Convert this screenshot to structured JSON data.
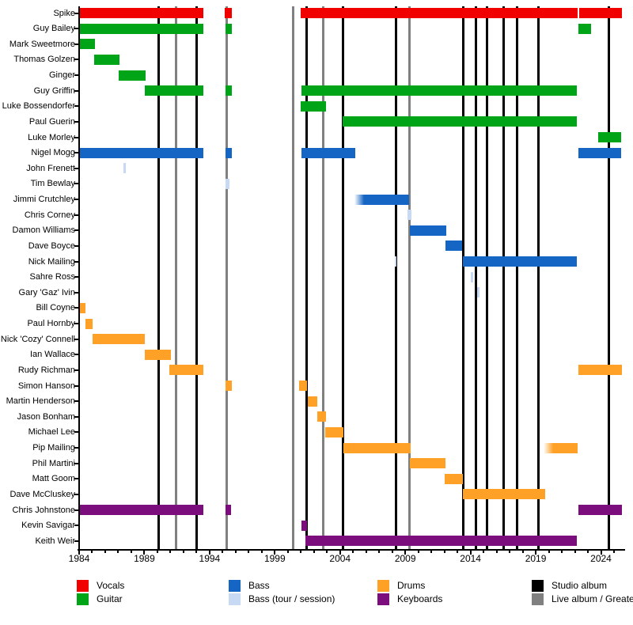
{
  "chart_data": {
    "type": "timeline",
    "description": "Band members timeline (gantt-style), roles by color, album release markers as vertical lines",
    "x_axis": {
      "start_year": 1984,
      "end_year": 2026,
      "major_tick_labels": [
        "1984",
        "1989",
        "1994",
        "1999",
        "2004",
        "2009",
        "2014",
        "2019",
        "2024"
      ],
      "major_tick_years": [
        1984,
        1989,
        1994,
        1999,
        2004,
        2009,
        2014,
        2019,
        2024
      ],
      "minor_tick_interval": 1,
      "grid": false
    },
    "colors": {
      "vocals": "#f10000",
      "guitar": "#00a417",
      "bass": "#1565c4",
      "bass_session": "#c8d9f3",
      "drums": "#ffa127",
      "keyboards": "#7c0d7c",
      "studio_album": "#000000",
      "live_album": "#808080"
    },
    "members": [
      {
        "name": "Spike",
        "segments": [
          {
            "s": 1984,
            "e": 1993.5,
            "r": "vocals"
          },
          {
            "s": 1995.15,
            "e": 1995.7,
            "r": "vocals"
          },
          {
            "s": 2001,
            "e": 2022.2,
            "r": "vocals"
          },
          {
            "s": 2022.35,
            "e": 2025.6,
            "r": "vocals"
          }
        ]
      },
      {
        "name": "Guy Bailey",
        "segments": [
          {
            "s": 1984,
            "e": 1993.5,
            "r": "guitar"
          },
          {
            "s": 1995.2,
            "e": 1995.7,
            "r": "guitar"
          },
          {
            "s": 2022.3,
            "e": 2023.25,
            "r": "guitar"
          }
        ]
      },
      {
        "name": "Mark Sweetmore",
        "segments": [
          {
            "s": 1984.05,
            "e": 1985.2,
            "r": "guitar"
          }
        ]
      },
      {
        "name": "Thomas Golzen",
        "segments": [
          {
            "s": 1985.15,
            "e": 1987.1,
            "r": "guitar"
          }
        ]
      },
      {
        "name": "Ginger",
        "segments": [
          {
            "s": 1987.05,
            "e": 1989.1,
            "r": "guitar"
          }
        ]
      },
      {
        "name": "Guy Griffin",
        "segments": [
          {
            "s": 1989.05,
            "e": 1993.5,
            "r": "guitar"
          },
          {
            "s": 1995.2,
            "e": 1995.7,
            "r": "guitar"
          },
          {
            "s": 2001.05,
            "e": 2022.15,
            "r": "guitar"
          }
        ]
      },
      {
        "name": "Luke Bossendorfer",
        "segments": [
          {
            "s": 2001,
            "e": 2002.9,
            "r": "guitar"
          }
        ]
      },
      {
        "name": "Paul Guerin",
        "segments": [
          {
            "s": 2004.2,
            "e": 2022.15,
            "r": "guitar"
          }
        ]
      },
      {
        "name": "Luke Morley",
        "segments": [
          {
            "s": 2023.8,
            "e": 2025.55,
            "r": "guitar"
          }
        ]
      },
      {
        "name": "Nigel Mogg",
        "segments": [
          {
            "s": 1984,
            "e": 1993.5,
            "r": "bass"
          },
          {
            "s": 1995.2,
            "e": 1995.7,
            "r": "bass"
          },
          {
            "s": 2001.05,
            "e": 2005.15,
            "r": "bass"
          },
          {
            "s": 2022.3,
            "e": 2025.55,
            "r": "bass"
          }
        ]
      },
      {
        "name": "John Frenett",
        "segments": [
          {
            "s": 1987.4,
            "e": 1987.55,
            "r": "bass_session"
          }
        ]
      },
      {
        "name": "Tim Bewlay",
        "segments": [
          {
            "s": 1995.2,
            "e": 1995.55,
            "r": "bass_session"
          }
        ]
      },
      {
        "name": "Jimmi Crutchley",
        "segments": [
          {
            "s": 2005.1,
            "e": 2009.3,
            "r": "bass",
            "fade_in": true
          }
        ]
      },
      {
        "name": "Chris Corney",
        "segments": [
          {
            "s": 2009.2,
            "e": 2009.45,
            "r": "bass_session"
          }
        ]
      },
      {
        "name": "Damon Williams",
        "segments": [
          {
            "s": 2009.35,
            "e": 2012.15,
            "r": "bass"
          }
        ]
      },
      {
        "name": "Dave Boyce",
        "segments": [
          {
            "s": 2012.1,
            "e": 2013.35,
            "r": "bass"
          }
        ]
      },
      {
        "name": "Nick Mailing",
        "segments": [
          {
            "s": 2008.2,
            "e": 2008.32,
            "r": "bass_session"
          },
          {
            "s": 2013.4,
            "e": 2022.15,
            "r": "bass"
          }
        ]
      },
      {
        "name": "Sahre Ross",
        "segments": [
          {
            "s": 2014,
            "e": 2014.2,
            "r": "bass_session"
          }
        ]
      },
      {
        "name": "Gary 'Gaz' Ivin",
        "segments": [
          {
            "s": 2014.5,
            "e": 2014.7,
            "r": "bass_session"
          }
        ]
      },
      {
        "name": "Bill Coyne",
        "segments": [
          {
            "s": 1984.05,
            "e": 1984.5,
            "r": "drums"
          }
        ]
      },
      {
        "name": "Paul Hornby",
        "segments": [
          {
            "s": 1984.5,
            "e": 1985.05,
            "r": "drums"
          }
        ]
      },
      {
        "name": "Nick 'Cozy' Connell",
        "segments": [
          {
            "s": 1985.05,
            "e": 1989.05,
            "r": "drums"
          }
        ]
      },
      {
        "name": "Ian Wallace",
        "segments": [
          {
            "s": 1989.05,
            "e": 1991.05,
            "r": "drums"
          }
        ]
      },
      {
        "name": "Rudy Richman",
        "segments": [
          {
            "s": 1990.9,
            "e": 1993.5,
            "r": "drums"
          },
          {
            "s": 2022.3,
            "e": 2025.6,
            "r": "drums"
          }
        ]
      },
      {
        "name": "Simon Hanson",
        "segments": [
          {
            "s": 1995.25,
            "e": 1995.7,
            "r": "drums"
          },
          {
            "s": 2000.85,
            "e": 2001.45,
            "r": "drums"
          }
        ]
      },
      {
        "name": "Martin Henderson",
        "segments": [
          {
            "s": 2001.5,
            "e": 2002.25,
            "r": "drums"
          }
        ]
      },
      {
        "name": "Jason Bonham",
        "segments": [
          {
            "s": 2002.25,
            "e": 2002.9,
            "r": "drums"
          }
        ]
      },
      {
        "name": "Michael Lee",
        "segments": [
          {
            "s": 2002.85,
            "e": 2004.25,
            "r": "drums"
          }
        ]
      },
      {
        "name": "Pip Mailing",
        "segments": [
          {
            "s": 2004.25,
            "e": 2009.4,
            "r": "drums"
          },
          {
            "s": 2019.6,
            "e": 2022.2,
            "r": "drums",
            "fade_in": true
          }
        ]
      },
      {
        "name": "Phil Martini",
        "segments": [
          {
            "s": 2009.35,
            "e": 2012.1,
            "r": "drums"
          }
        ]
      },
      {
        "name": "Matt Goom",
        "segments": [
          {
            "s": 2012.05,
            "e": 2013.4,
            "r": "drums"
          }
        ]
      },
      {
        "name": "Dave McCluskey",
        "segments": [
          {
            "s": 2013.4,
            "e": 2019.7,
            "r": "drums"
          }
        ]
      },
      {
        "name": "Chris Johnstone",
        "segments": [
          {
            "s": 1984,
            "e": 1993.5,
            "r": "keyboards"
          },
          {
            "s": 1995.25,
            "e": 1995.65,
            "r": "keyboards"
          },
          {
            "s": 2022.3,
            "e": 2025.6,
            "r": "keyboards"
          }
        ]
      },
      {
        "name": "Kevin Savigar",
        "segments": [
          {
            "s": 2001.05,
            "e": 2001.45,
            "r": "keyboards"
          }
        ]
      },
      {
        "name": "Keith Weir",
        "segments": [
          {
            "s": 2001.35,
            "e": 2022.15,
            "r": "keyboards"
          }
        ]
      }
    ],
    "studio_album_years": [
      1990.1,
      1993.0,
      2001.45,
      2004.25,
      2008.3,
      2013.45,
      2014.4,
      2015.25,
      2016.55,
      2017.6,
      2019.2,
      2024.6
    ],
    "live_album_years": [
      1991.4,
      1995.3,
      2000.4,
      2002.7,
      2009.35
    ],
    "legend": [
      {
        "col": 0,
        "row": 0,
        "label": "Vocals",
        "color_key": "vocals"
      },
      {
        "col": 0,
        "row": 1,
        "label": "Guitar",
        "color_key": "guitar"
      },
      {
        "col": 1,
        "row": 0,
        "label": "Bass",
        "color_key": "bass"
      },
      {
        "col": 1,
        "row": 1,
        "label": "Bass (tour / session)",
        "color_key": "bass_session"
      },
      {
        "col": 2,
        "row": 0,
        "label": "Drums",
        "color_key": "drums"
      },
      {
        "col": 2,
        "row": 1,
        "label": "Keyboards",
        "color_key": "keyboards"
      },
      {
        "col": 3,
        "row": 0,
        "label": "Studio album",
        "color_key": "studio_album"
      },
      {
        "col": 3,
        "row": 1,
        "label": "Live album / Greatest Hits",
        "color_key": "live_album"
      }
    ]
  }
}
